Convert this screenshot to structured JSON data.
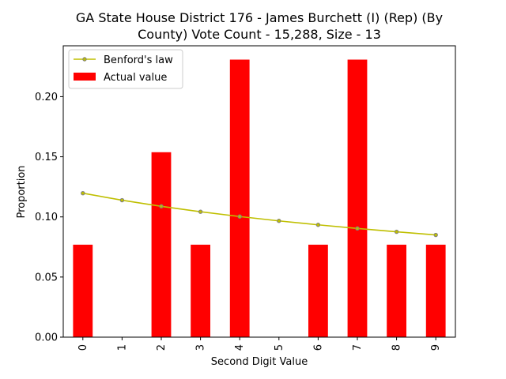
{
  "chart_data": {
    "type": "bar",
    "title_line1": "GA State House District 176 - James Burchett (I) (Rep) (By",
    "title_line2": "County) Vote Count - 15,288, Size - 13",
    "xlabel": "Second Digit Value",
    "ylabel": "Proportion",
    "categories": [
      "0",
      "1",
      "2",
      "3",
      "4",
      "5",
      "6",
      "7",
      "8",
      "9"
    ],
    "ylim": [
      0,
      0.2423
    ],
    "yticks": [
      0.0,
      0.05,
      0.1,
      0.15,
      0.2
    ],
    "ytick_labels": [
      "0.00",
      "0.05",
      "0.10",
      "0.15",
      "0.20"
    ],
    "series": [
      {
        "name": "Actual value",
        "kind": "bar",
        "color": "#ff0000",
        "values": [
          0.0769,
          0.0,
          0.1538,
          0.0769,
          0.2308,
          0.0,
          0.0769,
          0.2308,
          0.0769,
          0.0769
        ]
      },
      {
        "name": "Benford's law",
        "kind": "line",
        "color": "#bfbf00",
        "marker_edge": "#808080",
        "values": [
          0.1197,
          0.1139,
          0.1088,
          0.1043,
          0.1003,
          0.0967,
          0.0934,
          0.0904,
          0.0876,
          0.085
        ]
      }
    ],
    "legend_position": "upper-left",
    "grid": false
  }
}
